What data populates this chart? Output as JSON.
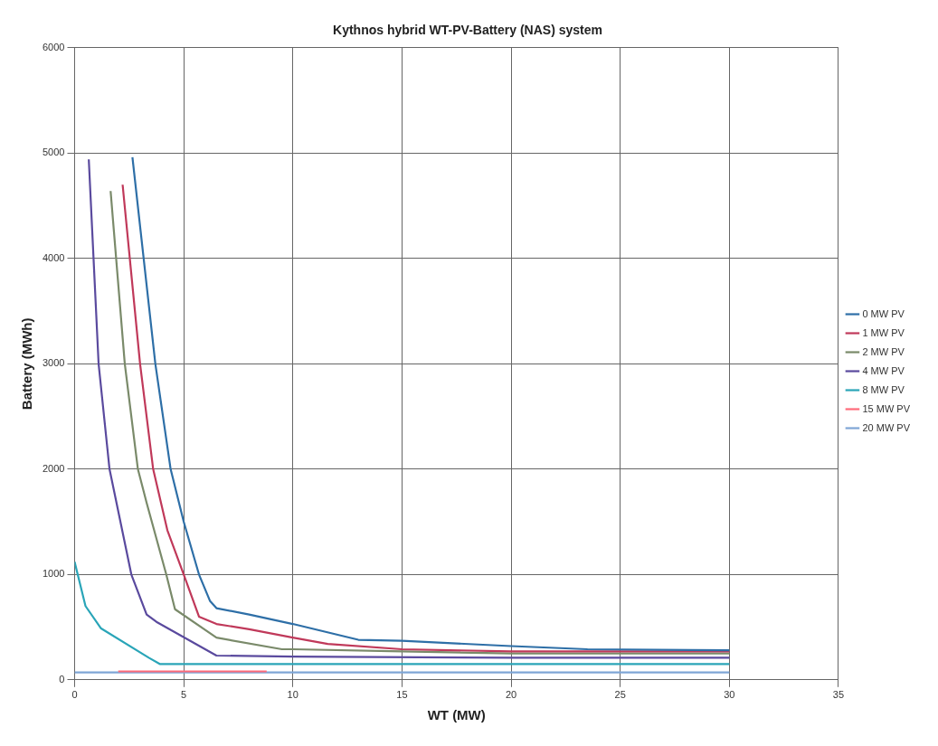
{
  "chart_data": {
    "type": "line",
    "title": "Kythnos hybrid WT-PV-Battery (NAS) system",
    "xlabel": "WT (MW)",
    "ylabel": "Battery (MWh)",
    "xlim": [
      0,
      35
    ],
    "xticks": [
      0,
      5,
      10,
      15,
      20,
      25,
      30,
      35
    ],
    "ylim": [
      0,
      6000
    ],
    "yticks": [
      0,
      1000,
      2000,
      3000,
      4000,
      5000,
      6000
    ],
    "grid": true,
    "legend": "right",
    "marker": "none",
    "line_style": "solid",
    "series": [
      {
        "name": "0 MW PV",
        "color": "#2e6fa7",
        "x": [
          2.65,
          3.7,
          4.4,
          5.0,
          5.7,
          6.2,
          6.5,
          8,
          10,
          13,
          15,
          20,
          23.5,
          30
        ],
        "values": [
          4960,
          3000,
          2000,
          1500,
          1000,
          750,
          680,
          620,
          530,
          380,
          370,
          320,
          290,
          280
        ]
      },
      {
        "name": "1 MW PV",
        "color": "#c0395a",
        "x": [
          2.2,
          3.0,
          3.6,
          4.25,
          5.0,
          5.7,
          6.5,
          8,
          10,
          11.6,
          15,
          20,
          30
        ],
        "values": [
          4700,
          3000,
          2000,
          1420,
          1000,
          600,
          530,
          480,
          400,
          340,
          290,
          270,
          270
        ]
      },
      {
        "name": "2 MW PV",
        "color": "#7a8a6a",
        "x": [
          1.65,
          2.3,
          2.9,
          3.3,
          4.2,
          4.6,
          6.5,
          9.5,
          10,
          15,
          20,
          30
        ],
        "values": [
          4640,
          3000,
          2000,
          1680,
          1000,
          670,
          400,
          290,
          290,
          270,
          250,
          250
        ]
      },
      {
        "name": "4 MW PV",
        "color": "#5a4a9e",
        "x": [
          0.65,
          1.1,
          1.6,
          2.6,
          3.3,
          3.75,
          6.5,
          10,
          20,
          30
        ],
        "values": [
          4940,
          3000,
          2000,
          1000,
          620,
          550,
          230,
          220,
          210,
          210
        ]
      },
      {
        "name": "8 MW PV",
        "color": "#2aa5b8",
        "x": [
          0,
          0.5,
          1.2,
          3.4,
          3.9,
          10,
          20,
          30
        ],
        "values": [
          1120,
          700,
          490,
          210,
          150,
          150,
          150,
          150
        ]
      },
      {
        "name": "15 MW PV",
        "color": "#ff6b7a",
        "x": [
          2,
          5,
          8.8
        ],
        "values": [
          80,
          80,
          80
        ]
      },
      {
        "name": "20 MW PV",
        "color": "#7fa6d6",
        "x": [
          0,
          10,
          20,
          30
        ],
        "values": [
          70,
          70,
          70,
          70
        ]
      }
    ]
  }
}
